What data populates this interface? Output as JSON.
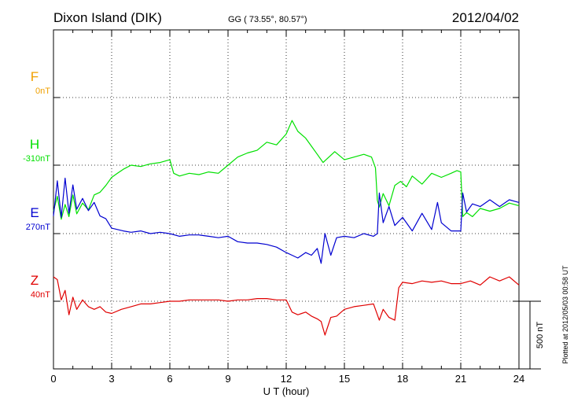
{
  "header": {
    "station": "Dixon Island (DIK)",
    "coords": "GG ( 73.55°,  80.57°)",
    "date": "2012/04/02"
  },
  "plotted_note": "Plotted at 2012/05/03 00:58 UT",
  "scale_label": "500 nT",
  "chart_data": {
    "type": "line",
    "xlabel": "U T (hour)",
    "xlim": [
      0,
      24
    ],
    "xticks": [
      "0",
      "3",
      "6",
      "9",
      "12",
      "15",
      "18",
      "21",
      "24"
    ],
    "series": [
      {
        "name": "F",
        "base": "0nT",
        "color": "#f0a000",
        "x": [],
        "values": []
      },
      {
        "name": "H",
        "base": "-310nT",
        "color": "#00e000",
        "x": [
          0,
          0.2,
          0.4,
          0.6,
          0.8,
          1.0,
          1.2,
          1.5,
          1.8,
          2.1,
          2.4,
          2.7,
          3.0,
          3.3,
          3.6,
          4.0,
          4.5,
          5.0,
          5.5,
          6.0,
          6.2,
          6.5,
          7.0,
          7.5,
          8.0,
          8.5,
          9.0,
          9.5,
          10.0,
          10.5,
          11.0,
          11.5,
          12.0,
          12.3,
          12.6,
          13.0,
          13.3,
          13.6,
          13.9,
          14.2,
          14.5,
          15.0,
          15.5,
          16.0,
          16.4,
          16.6,
          16.7,
          16.8,
          17.0,
          17.3,
          17.6,
          17.9,
          18.2,
          18.5,
          19.0,
          19.5,
          20.0,
          20.5,
          20.8,
          21.0,
          21.1,
          21.3,
          21.6,
          22.0,
          22.5,
          23.0,
          23.5,
          24.0
        ],
        "values": [
          -340,
          -230,
          -400,
          -290,
          -380,
          -220,
          -360,
          -280,
          -330,
          -220,
          -200,
          -150,
          -90,
          -60,
          -30,
          0,
          -10,
          10,
          20,
          40,
          -60,
          -80,
          -60,
          -70,
          -50,
          -60,
          0,
          60,
          90,
          110,
          170,
          150,
          230,
          330,
          250,
          200,
          140,
          80,
          20,
          60,
          100,
          40,
          60,
          80,
          60,
          -20,
          -260,
          -310,
          -210,
          -300,
          -150,
          -120,
          -160,
          -80,
          -140,
          -60,
          -90,
          -60,
          -40,
          -50,
          -380,
          -350,
          -380,
          -320,
          -340,
          -320,
          -280,
          -300
        ]
      },
      {
        "name": "E",
        "base": "270nT",
        "color": "#0000d0",
        "x": [
          0,
          0.2,
          0.4,
          0.6,
          0.8,
          1.0,
          1.2,
          1.5,
          1.8,
          2.1,
          2.4,
          2.7,
          3.0,
          3.3,
          3.6,
          4.0,
          4.5,
          5.0,
          5.5,
          6.0,
          6.5,
          7.0,
          7.5,
          8.0,
          8.5,
          9.0,
          9.5,
          10.0,
          10.5,
          11.0,
          11.5,
          12.0,
          12.3,
          12.6,
          13.0,
          13.3,
          13.6,
          13.8,
          14.0,
          14.3,
          14.6,
          15.0,
          15.5,
          16.0,
          16.5,
          16.7,
          16.8,
          17.0,
          17.3,
          17.6,
          18.0,
          18.5,
          19.0,
          19.5,
          19.8,
          20.0,
          20.5,
          21.0,
          21.1,
          21.3,
          21.6,
          22.0,
          22.5,
          23.0,
          23.5,
          24.0
        ],
        "values": [
          130,
          390,
          120,
          410,
          150,
          360,
          180,
          260,
          170,
          230,
          130,
          110,
          40,
          30,
          20,
          10,
          20,
          0,
          10,
          0,
          -20,
          -10,
          -10,
          -20,
          -30,
          -20,
          -60,
          -70,
          -70,
          -80,
          -100,
          -140,
          -160,
          -180,
          -140,
          -160,
          -110,
          -220,
          0,
          -160,
          -30,
          -20,
          -30,
          0,
          -20,
          0,
          300,
          80,
          200,
          60,
          120,
          20,
          150,
          30,
          230,
          80,
          20,
          20,
          300,
          160,
          220,
          200,
          250,
          200,
          250,
          230
        ]
      },
      {
        "name": "Z",
        "base": "40nT",
        "color": "#e00000",
        "x": [
          0,
          0.2,
          0.4,
          0.6,
          0.8,
          1.0,
          1.2,
          1.5,
          1.8,
          2.1,
          2.4,
          2.7,
          3.0,
          3.5,
          4.0,
          4.5,
          5.0,
          5.5,
          6.0,
          6.5,
          7.0,
          7.5,
          8.0,
          8.5,
          9.0,
          9.5,
          10.0,
          10.5,
          11.0,
          11.5,
          12.0,
          12.3,
          12.6,
          13.0,
          13.3,
          13.6,
          13.8,
          14.0,
          14.3,
          14.6,
          15.0,
          15.5,
          16.0,
          16.5,
          16.8,
          17.0,
          17.3,
          17.6,
          17.8,
          18.0,
          18.5,
          19.0,
          19.5,
          20.0,
          20.5,
          21.0,
          21.5,
          22.0,
          22.5,
          23.0,
          23.5,
          24.0
        ],
        "values": [
          180,
          160,
          10,
          80,
          -100,
          30,
          -60,
          10,
          -40,
          -60,
          -40,
          -80,
          -90,
          -60,
          -40,
          -20,
          -20,
          -10,
          0,
          0,
          10,
          10,
          10,
          10,
          0,
          10,
          10,
          20,
          20,
          10,
          10,
          -80,
          -100,
          -80,
          -110,
          -130,
          -150,
          -250,
          -120,
          -110,
          -60,
          -40,
          -30,
          -20,
          -140,
          -60,
          -120,
          -140,
          100,
          140,
          130,
          150,
          140,
          150,
          130,
          130,
          150,
          120,
          180,
          150,
          180,
          120
        ]
      }
    ]
  }
}
